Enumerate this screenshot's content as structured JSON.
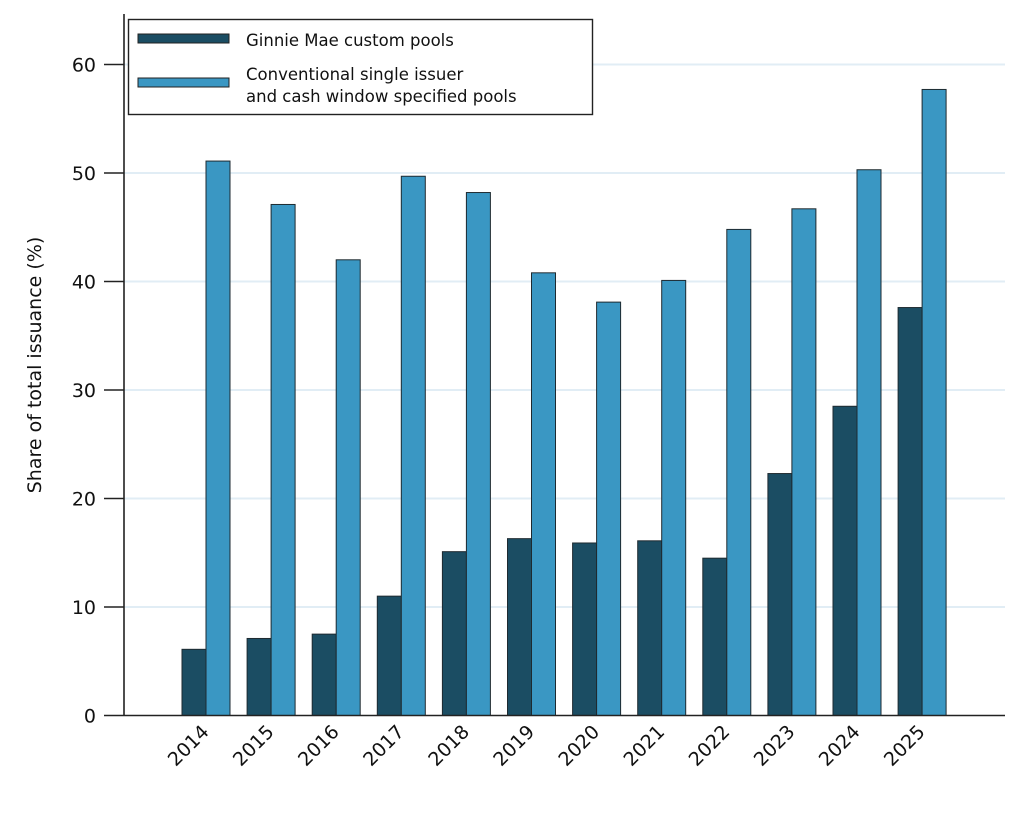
{
  "chart_data": {
    "type": "bar",
    "title": "",
    "xlabel": "",
    "ylabel": "Share of total issuance (%)",
    "ylim": [
      0,
      65
    ],
    "yticks": [
      0,
      10,
      20,
      30,
      40,
      50,
      60
    ],
    "grid": true,
    "legend_position": "top-left",
    "categories": [
      "2014",
      "2015",
      "2016",
      "2017",
      "2018",
      "2019",
      "2020",
      "2021",
      "2022",
      "2023",
      "2024",
      "2025"
    ],
    "series": [
      {
        "name": "Ginnie Mae custom pools",
        "color": "#1b4d63",
        "values": [
          6.1,
          7.1,
          7.5,
          11.0,
          15.1,
          16.3,
          15.9,
          16.1,
          14.5,
          22.3,
          28.5,
          37.6
        ]
      },
      {
        "name": "Conventional single issuer and cash window specified pools",
        "legend_lines": [
          "Conventional single issuer",
          "and cash window specified pools"
        ],
        "color": "#3a97c3",
        "values": [
          51.1,
          47.1,
          42.0,
          49.7,
          48.2,
          40.8,
          38.1,
          40.1,
          44.8,
          46.7,
          50.3,
          57.7
        ]
      }
    ]
  }
}
